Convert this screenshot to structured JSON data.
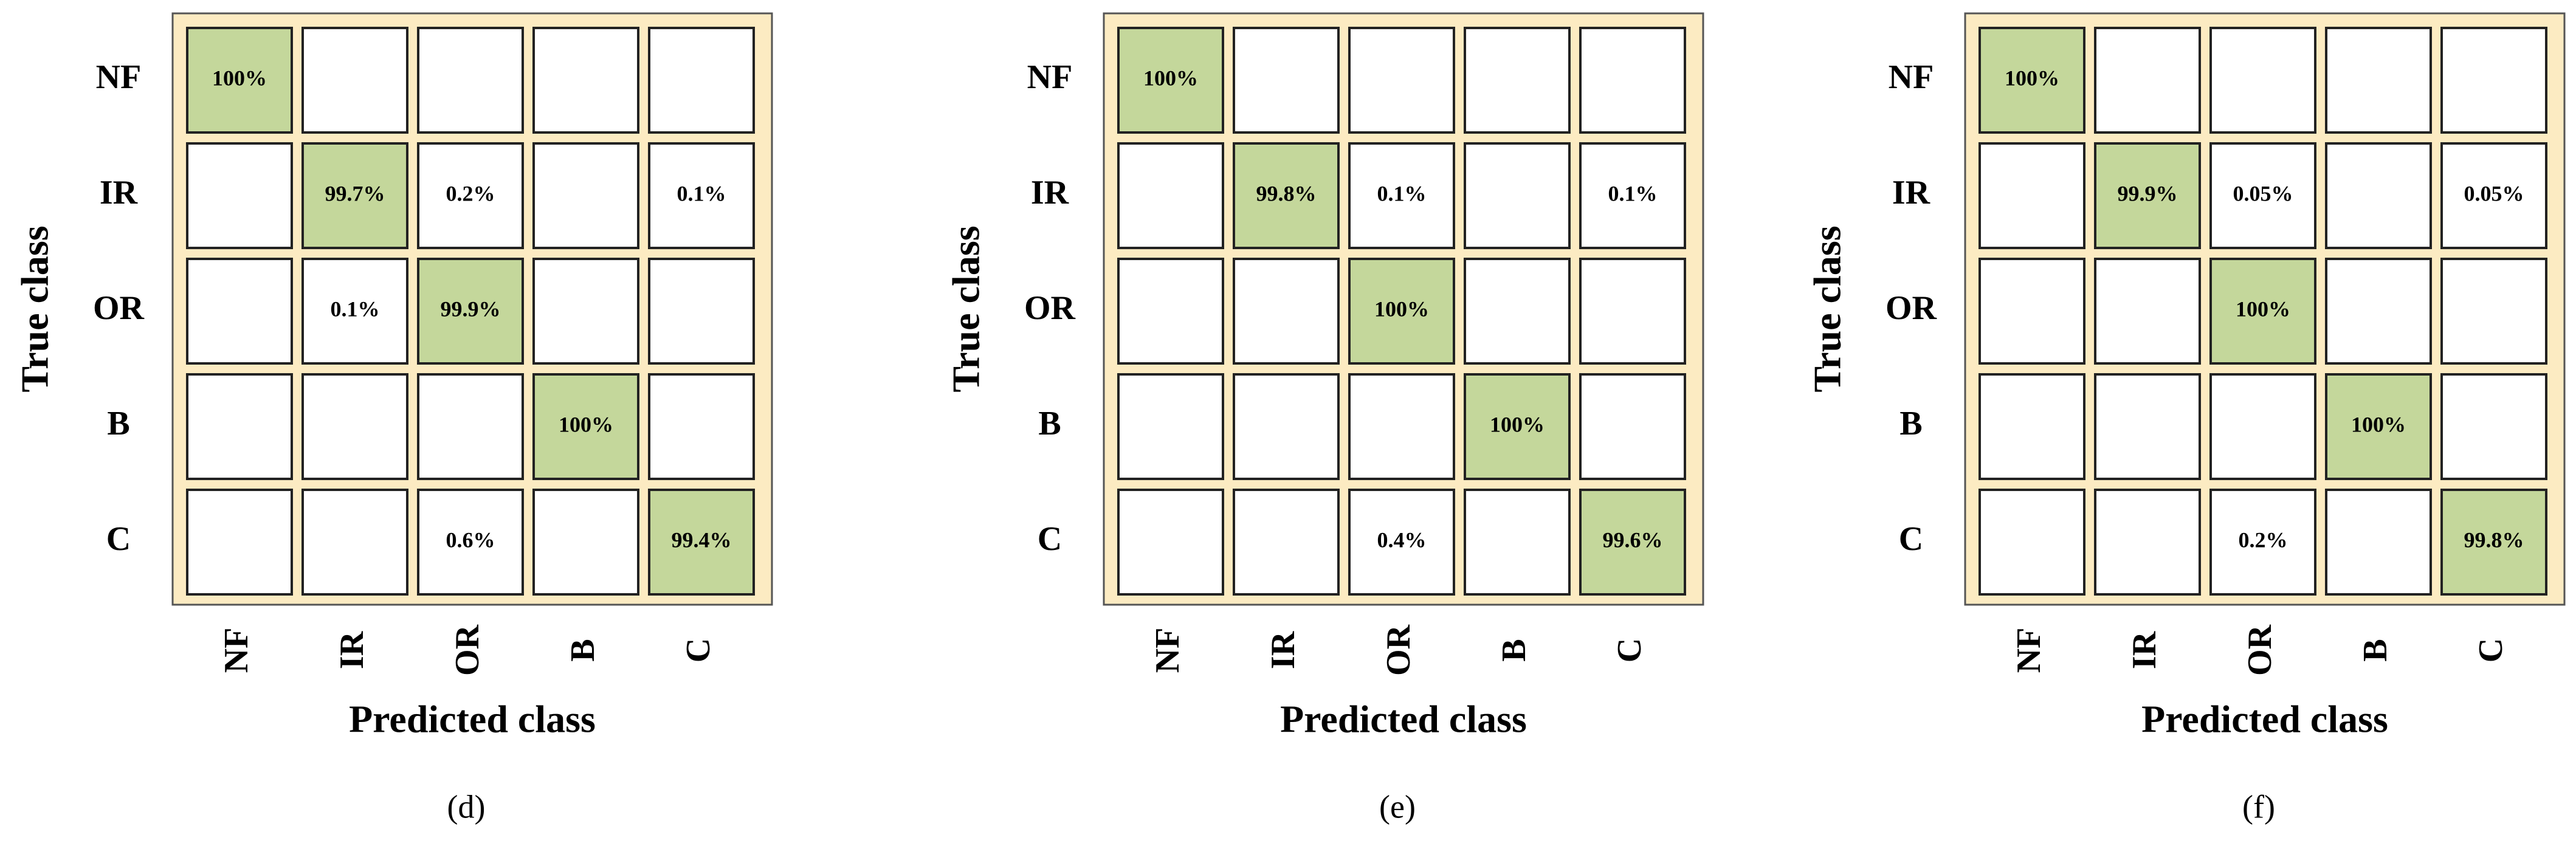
{
  "chart_data": [
    {
      "type": "heatmap",
      "caption": "(d)",
      "xlabel": "Predicted class",
      "ylabel": "True class",
      "x_categories": [
        "NF",
        "IR",
        "OR",
        "B",
        "C"
      ],
      "y_categories": [
        "NF",
        "IR",
        "OR",
        "B",
        "C"
      ],
      "values": [
        [
          100,
          null,
          null,
          null,
          null
        ],
        [
          null,
          99.7,
          0.2,
          null,
          0.1
        ],
        [
          null,
          0.1,
          99.9,
          null,
          null
        ],
        [
          null,
          null,
          null,
          100,
          null
        ],
        [
          null,
          null,
          0.6,
          null,
          99.4
        ]
      ],
      "value_labels": [
        [
          "100%",
          null,
          null,
          null,
          null
        ],
        [
          null,
          "99.7%",
          "0.2%",
          null,
          "0.1%"
        ],
        [
          null,
          "0.1%",
          "99.9%",
          null,
          null
        ],
        [
          null,
          null,
          null,
          "100%",
          null
        ],
        [
          null,
          null,
          "0.6%",
          null,
          "99.4%"
        ]
      ],
      "diagonal_color": "#c4d79b",
      "cell_color": "#ffffff",
      "frame_color": "#fcebc2"
    },
    {
      "type": "heatmap",
      "caption": "(e)",
      "xlabel": "Predicted class",
      "ylabel": "True class",
      "x_categories": [
        "NF",
        "IR",
        "OR",
        "B",
        "C"
      ],
      "y_categories": [
        "NF",
        "IR",
        "OR",
        "B",
        "C"
      ],
      "values": [
        [
          100,
          null,
          null,
          null,
          null
        ],
        [
          null,
          99.8,
          0.1,
          null,
          0.1
        ],
        [
          null,
          null,
          100,
          null,
          null
        ],
        [
          null,
          null,
          null,
          100,
          null
        ],
        [
          null,
          null,
          0.4,
          null,
          99.6
        ]
      ],
      "value_labels": [
        [
          "100%",
          null,
          null,
          null,
          null
        ],
        [
          null,
          "99.8%",
          "0.1%",
          null,
          "0.1%"
        ],
        [
          null,
          null,
          "100%",
          null,
          null
        ],
        [
          null,
          null,
          null,
          "100%",
          null
        ],
        [
          null,
          null,
          "0.4%",
          null,
          "99.6%"
        ]
      ],
      "diagonal_color": "#c4d79b",
      "cell_color": "#ffffff",
      "frame_color": "#fcebc2"
    },
    {
      "type": "heatmap",
      "caption": "(f)",
      "xlabel": "Predicted class",
      "ylabel": "True class",
      "x_categories": [
        "NF",
        "IR",
        "OR",
        "B",
        "C"
      ],
      "y_categories": [
        "NF",
        "IR",
        "OR",
        "B",
        "C"
      ],
      "values": [
        [
          100,
          null,
          null,
          null,
          null
        ],
        [
          null,
          99.9,
          0.05,
          null,
          0.05
        ],
        [
          null,
          null,
          100,
          null,
          null
        ],
        [
          null,
          null,
          null,
          100,
          null
        ],
        [
          null,
          null,
          0.2,
          null,
          99.8
        ]
      ],
      "value_labels": [
        [
          "100%",
          null,
          null,
          null,
          null
        ],
        [
          null,
          "99.9%",
          "0.05%",
          null,
          "0.05%"
        ],
        [
          null,
          null,
          "100%",
          null,
          null
        ],
        [
          null,
          null,
          null,
          "100%",
          null
        ],
        [
          null,
          null,
          "0.2%",
          null,
          "99.8%"
        ]
      ],
      "diagonal_color": "#c4d79b",
      "cell_color": "#ffffff",
      "frame_color": "#fcebc2"
    }
  ]
}
